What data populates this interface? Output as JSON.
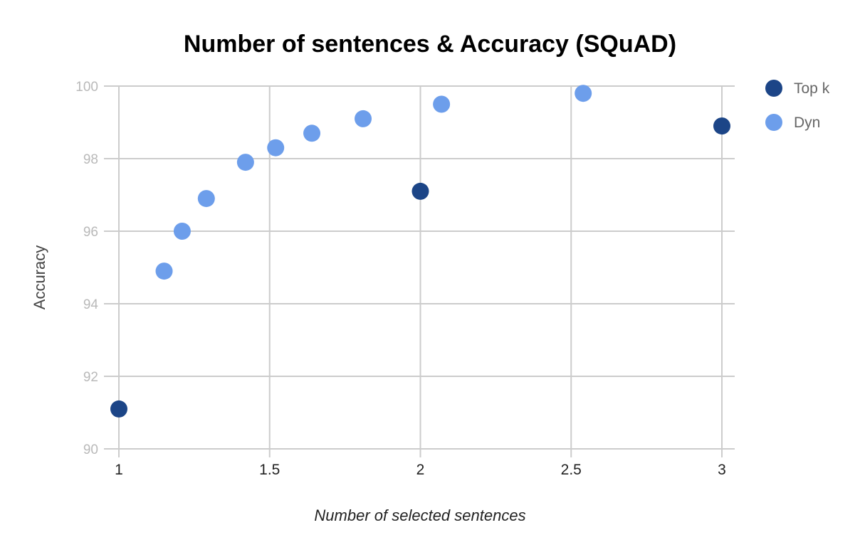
{
  "chart_data": {
    "type": "scatter",
    "title": "Number of sentences & Accuracy (SQuAD)",
    "xlabel": "Number of selected sentences",
    "ylabel": "Accuracy",
    "xlim": [
      1,
      3
    ],
    "ylim": [
      90,
      100
    ],
    "x_ticks": [
      1,
      1.5,
      2,
      2.5,
      3
    ],
    "y_ticks": [
      90,
      92,
      94,
      96,
      98,
      100
    ],
    "grid": true,
    "legend_position": "right",
    "series": [
      {
        "name": "Top k",
        "color": "#1c4587",
        "points": [
          {
            "x": 1,
            "y": 91.1
          },
          {
            "x": 2,
            "y": 97.1
          },
          {
            "x": 3,
            "y": 98.9
          }
        ]
      },
      {
        "name": "Dyn",
        "color": "#6d9eeb",
        "points": [
          {
            "x": 1.15,
            "y": 94.9
          },
          {
            "x": 1.21,
            "y": 96.0
          },
          {
            "x": 1.29,
            "y": 96.9
          },
          {
            "x": 1.42,
            "y": 97.9
          },
          {
            "x": 1.52,
            "y": 98.3
          },
          {
            "x": 1.64,
            "y": 98.7
          },
          {
            "x": 1.81,
            "y": 99.1
          },
          {
            "x": 2.07,
            "y": 99.5
          },
          {
            "x": 2.54,
            "y": 99.8
          }
        ]
      }
    ]
  }
}
